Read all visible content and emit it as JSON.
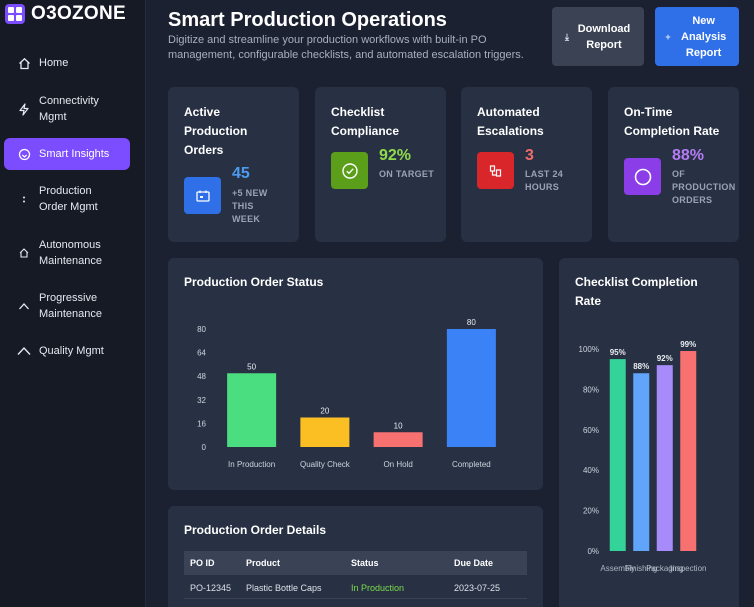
{
  "app": {
    "logo_text": "O3OZONE"
  },
  "sidebar": {
    "items": [
      {
        "label": "Home",
        "icon": "home-icon"
      },
      {
        "label": "Connectivity Mgmt",
        "icon": "lightning-icon"
      },
      {
        "label": "Smart Insights",
        "icon": "insights-icon",
        "active": true
      },
      {
        "label": "Production Order Mgmt",
        "icon": "order-icon"
      },
      {
        "label": "Autonomous Maintenance",
        "icon": "maintenance-icon"
      },
      {
        "label": "Progressive Maintenance",
        "icon": "chevron-up-icon"
      },
      {
        "label": "Quality Mgmt",
        "icon": "chevron-up-icon"
      }
    ]
  },
  "header": {
    "title": "Smart Production Operations",
    "subtitle": "Digitize and streamline your production workflows with built-in PO management, configurable checklists, and automated escalation triggers.",
    "download_label": "Download Report",
    "new_label": "New Analysis Report"
  },
  "kpis": [
    {
      "title": "Active Production Orders",
      "value": "45",
      "sub": "+5 NEW THIS WEEK",
      "color": "#4d9bf0",
      "icon_bg": "#2f6fe8",
      "icon": "calendar-icon"
    },
    {
      "title": "Checklist Compliance",
      "value": "92%",
      "sub": "ON TARGET",
      "color": "#8fdc4b",
      "icon_bg": "#5a9e1a",
      "icon": "check-circle-icon"
    },
    {
      "title": "Automated Escalations",
      "value": "3",
      "sub": "LAST 24 HOURS",
      "color": "#f06a6a",
      "icon_bg": "#d9262a",
      "icon": "escalation-icon"
    },
    {
      "title": "On-Time Completion Rate",
      "value": "88%",
      "sub": "OF PRODUCTION ORDERS",
      "color": "#b57cf5",
      "icon_bg": "#8b3ee8",
      "icon": "circle-icon"
    }
  ],
  "status_panel": {
    "title": "Production Order Status"
  },
  "checklist_panel": {
    "title": "Checklist Completion Rate"
  },
  "details_panel": {
    "title": "Production Order Details",
    "columns": [
      "PO ID",
      "Product",
      "Status",
      "Due Date"
    ],
    "rows": [
      {
        "po_id": "PO-12345",
        "product": "Plastic Bottle Caps",
        "status": "In Production",
        "due": "2023-07-25",
        "status_color": "#7bdc4a"
      }
    ]
  },
  "chart_data": [
    {
      "type": "bar",
      "categories": [
        "In Production",
        "Quality Check",
        "On Hold",
        "Completed"
      ],
      "values": [
        50,
        20,
        10,
        80
      ],
      "colors": [
        "#4ade80",
        "#fbbf24",
        "#f87171",
        "#3b82f6"
      ],
      "ylim": [
        0,
        80
      ],
      "yticks": [
        0,
        16,
        32,
        48,
        64,
        80
      ],
      "data_labels": true,
      "grid": false
    },
    {
      "type": "bar",
      "categories": [
        "Assembly",
        "Finishing",
        "Packaging",
        "Inspection"
      ],
      "values": [
        95,
        88,
        92,
        99
      ],
      "value_labels": [
        "95%",
        "88%",
        "92%",
        "99%"
      ],
      "colors": [
        "#34d399",
        "#60a5fa",
        "#a78bfa",
        "#f87171"
      ],
      "ylim": [
        0,
        100
      ],
      "yticks": [
        "0%",
        "20%",
        "40%",
        "60%",
        "80%",
        "100%"
      ],
      "data_labels": true,
      "grid": false
    }
  ]
}
